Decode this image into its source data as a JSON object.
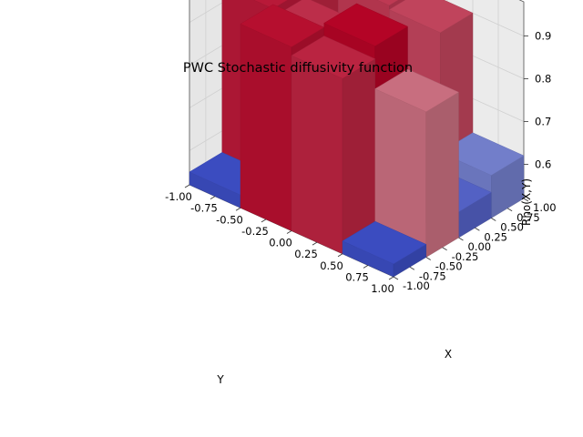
{
  "chart_data": {
    "type": "surface3d",
    "title": "PWC Stochastic diffusivity function",
    "xlabel": "X",
    "ylabel": "Y",
    "zlabel": "Rho(X,Y)",
    "xlim": [
      -1.0,
      1.0
    ],
    "ylim": [
      -1.0,
      1.0
    ],
    "zlim": [
      0.52,
      0.98
    ],
    "x_ticks": [
      "-1.00",
      "-0.75",
      "-0.50",
      "-0.25",
      "0.00",
      "0.25",
      "0.50",
      "0.75",
      "1.00"
    ],
    "y_ticks": [
      "-1.00",
      "-0.75",
      "-0.50",
      "-0.25",
      "0.00",
      "0.25",
      "0.50",
      "0.75",
      "1.00"
    ],
    "z_ticks": [
      "0.6",
      "0.7",
      "0.8",
      "0.9"
    ],
    "colormap": "coolwarm",
    "grid": true,
    "x_edges": [
      -1.0,
      -0.5,
      0.0,
      0.5,
      1.0
    ],
    "y_edges": [
      -1.0,
      -0.5,
      0.0,
      0.5,
      1.0
    ],
    "z_values": [
      [
        0.55,
        0.95,
        0.93,
        0.55
      ],
      [
        0.94,
        0.92,
        0.96,
        0.86
      ],
      [
        0.93,
        0.62,
        0.65,
        0.58
      ],
      [
        0.55,
        0.91,
        0.9,
        0.62
      ]
    ]
  },
  "colors": {
    "low": "#3b4cc0",
    "mid": "#dddddd",
    "high": "#b40426",
    "pane": "#f2f2f2",
    "grid": "#d0d0d0"
  }
}
